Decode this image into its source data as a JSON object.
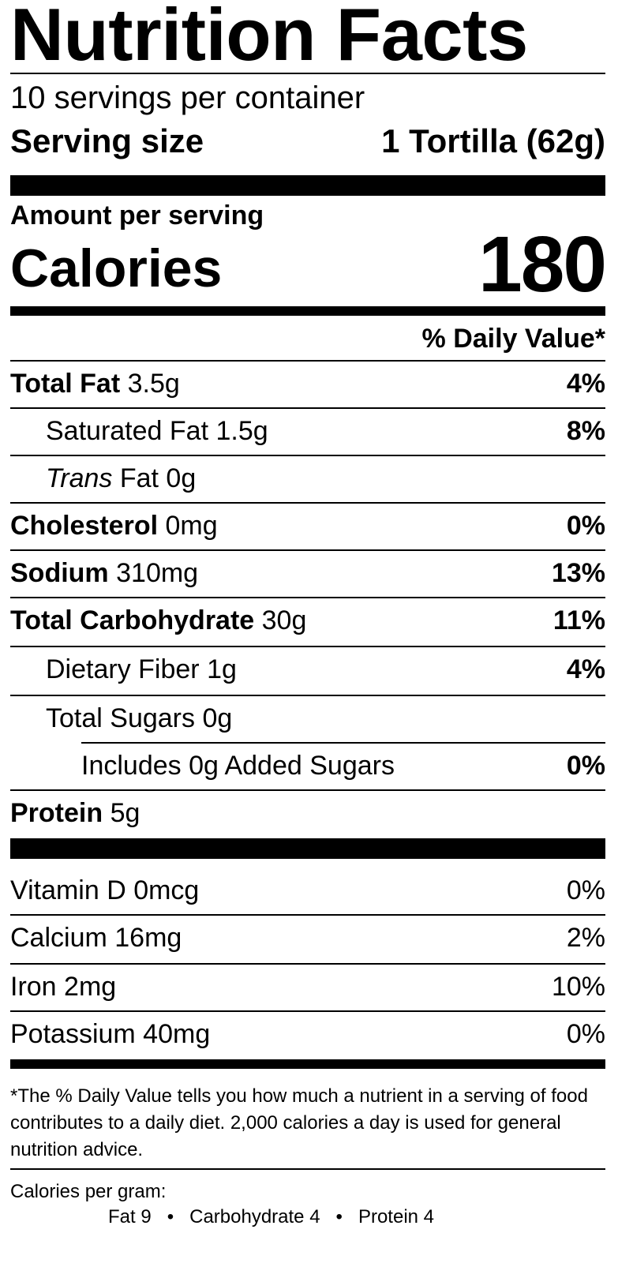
{
  "label": {
    "title": "Nutrition Facts",
    "servings_per_container": "10 servings per container",
    "serving_size_label": "Serving size",
    "serving_size_value": "1 Tortilla (62g)",
    "amount_per_serving": "Amount per serving",
    "calories_label": "Calories",
    "calories_value": "180",
    "daily_value_header": "% Daily Value*"
  },
  "nutrients": [
    {
      "name": "Total Fat",
      "amount": "3.5g",
      "dv": "4%"
    },
    {
      "name": "Saturated Fat",
      "amount": "1.5g",
      "dv": "8%"
    },
    {
      "name": "Trans",
      "suffix": "Fat",
      "amount": "0g",
      "dv": ""
    },
    {
      "name": "Cholesterol",
      "amount": "0mg",
      "dv": "0%"
    },
    {
      "name": "Sodium",
      "amount": "310mg",
      "dv": "13%"
    },
    {
      "name": "Total Carbohydrate",
      "amount": "30g",
      "dv": "11%"
    },
    {
      "name": "Dietary Fiber",
      "amount": "1g",
      "dv": "4%"
    },
    {
      "name": "Total Sugars",
      "amount": "0g",
      "dv": ""
    },
    {
      "name": "Includes 0g Added Sugars",
      "amount": "",
      "dv": "0%"
    },
    {
      "name": "Protein",
      "amount": "5g",
      "dv": ""
    }
  ],
  "vitamins": [
    {
      "name": "Vitamin D 0mcg",
      "dv": "0%"
    },
    {
      "name": "Calcium 16mg",
      "dv": "2%"
    },
    {
      "name": "Iron 2mg",
      "dv": "10%"
    },
    {
      "name": "Potassium 40mg",
      "dv": "0%"
    }
  ],
  "footnote": "*The % Daily Value tells you how much a nutrient in a serving of food contributes to a daily diet. 2,000 calories a day is used for general nutrition advice.",
  "calories_per_gram": {
    "label": "Calories per gram:",
    "fat": "Fat 9",
    "carbohydrate": "Carbohydrate 4",
    "protein": "Protein 4",
    "separator": "•"
  }
}
